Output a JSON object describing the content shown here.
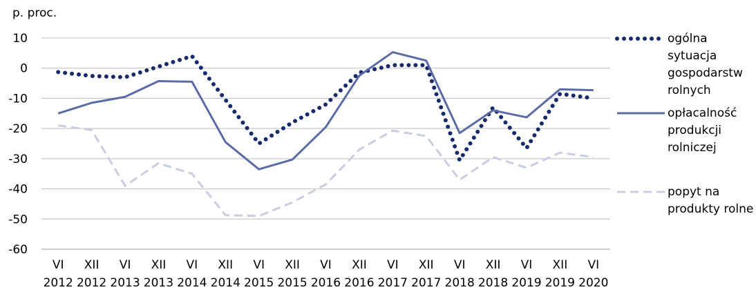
{
  "chart_data": {
    "type": "line",
    "y_label": "p. proc.",
    "categories": [
      [
        "VI",
        "2012"
      ],
      [
        "XII",
        "2012"
      ],
      [
        "VI",
        "2013"
      ],
      [
        "XII",
        "2013"
      ],
      [
        "VI",
        "2014"
      ],
      [
        "XII",
        "2014"
      ],
      [
        "VI",
        "2015"
      ],
      [
        "XII",
        "2015"
      ],
      [
        "VI",
        "2016"
      ],
      [
        "XII",
        "2016"
      ],
      [
        "VI",
        "2017"
      ],
      [
        "XII",
        "2017"
      ],
      [
        "VI",
        "2018"
      ],
      [
        "XII",
        "2018"
      ],
      [
        "VI",
        "2019"
      ],
      [
        "XII",
        "2019"
      ],
      [
        "VI",
        "2020"
      ]
    ],
    "series": [
      {
        "name": "ogólna sytuacja gospodarstw rolnych",
        "color": "#172a6b",
        "style": "dotted",
        "values": [
          -1.3,
          -2.6,
          -3,
          0.5,
          4,
          -10.5,
          -25,
          -18,
          -12,
          -1.5,
          1,
          1,
          -30.5,
          -13,
          -26.5,
          -8.5,
          -10
        ]
      },
      {
        "name": "opłacalność produkcji rolniczej",
        "color": "#5a6aa6",
        "style": "solid",
        "values": [
          -15,
          -11.5,
          -9.5,
          -4.3,
          -4.5,
          -24.5,
          -33.5,
          -30.3,
          -19.5,
          -2.5,
          5.3,
          2.5,
          -21.5,
          -14,
          -16.3,
          -7,
          -7.3
        ]
      },
      {
        "name": "popyt na produkty rolne",
        "color": "#c9cde2",
        "style": "dashed",
        "values": [
          -19,
          -20.5,
          -39,
          -31.5,
          -35,
          -48.7,
          -49,
          -44.5,
          -38.5,
          -27,
          -20.7,
          -22.5,
          -37,
          -29.5,
          -33,
          -28,
          -29.5
        ]
      }
    ],
    "ylim": [
      -60,
      10
    ],
    "yticks": [
      -60,
      -50,
      -40,
      -30,
      -20,
      -10,
      0,
      10
    ],
    "grid": true
  }
}
